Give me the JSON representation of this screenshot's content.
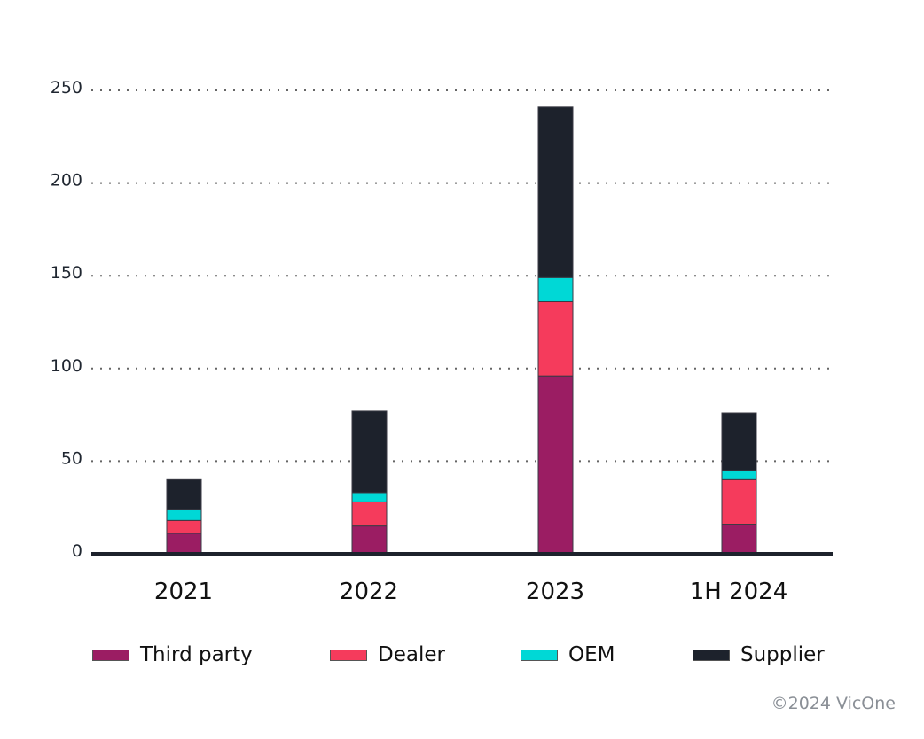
{
  "chart_data": {
    "type": "bar",
    "stacked": true,
    "title": "",
    "xlabel": "",
    "ylabel": "",
    "categories": [
      "2021",
      "2022",
      "2023",
      "1H 2024"
    ],
    "series": [
      {
        "name": "Third party",
        "color": "#9b1d63",
        "values": [
          11,
          15,
          96,
          16
        ]
      },
      {
        "name": "Dealer",
        "color": "#f53b5c",
        "values": [
          7,
          13,
          40,
          24
        ]
      },
      {
        "name": "OEM",
        "color": "#00d8d6",
        "values": [
          6,
          5,
          13,
          5
        ]
      },
      {
        "name": "Supplier",
        "color": "#1d222c",
        "values": [
          16,
          44,
          92,
          31
        ]
      }
    ],
    "totals": [
      40,
      77,
      241,
      76
    ],
    "ylim": [
      0,
      250
    ],
    "yticks": [
      0,
      50,
      100,
      150,
      200,
      250
    ],
    "grid": "dotted horizontal",
    "legend_position": "bottom"
  },
  "footer": {
    "copyright": "©2024 VicOne"
  }
}
